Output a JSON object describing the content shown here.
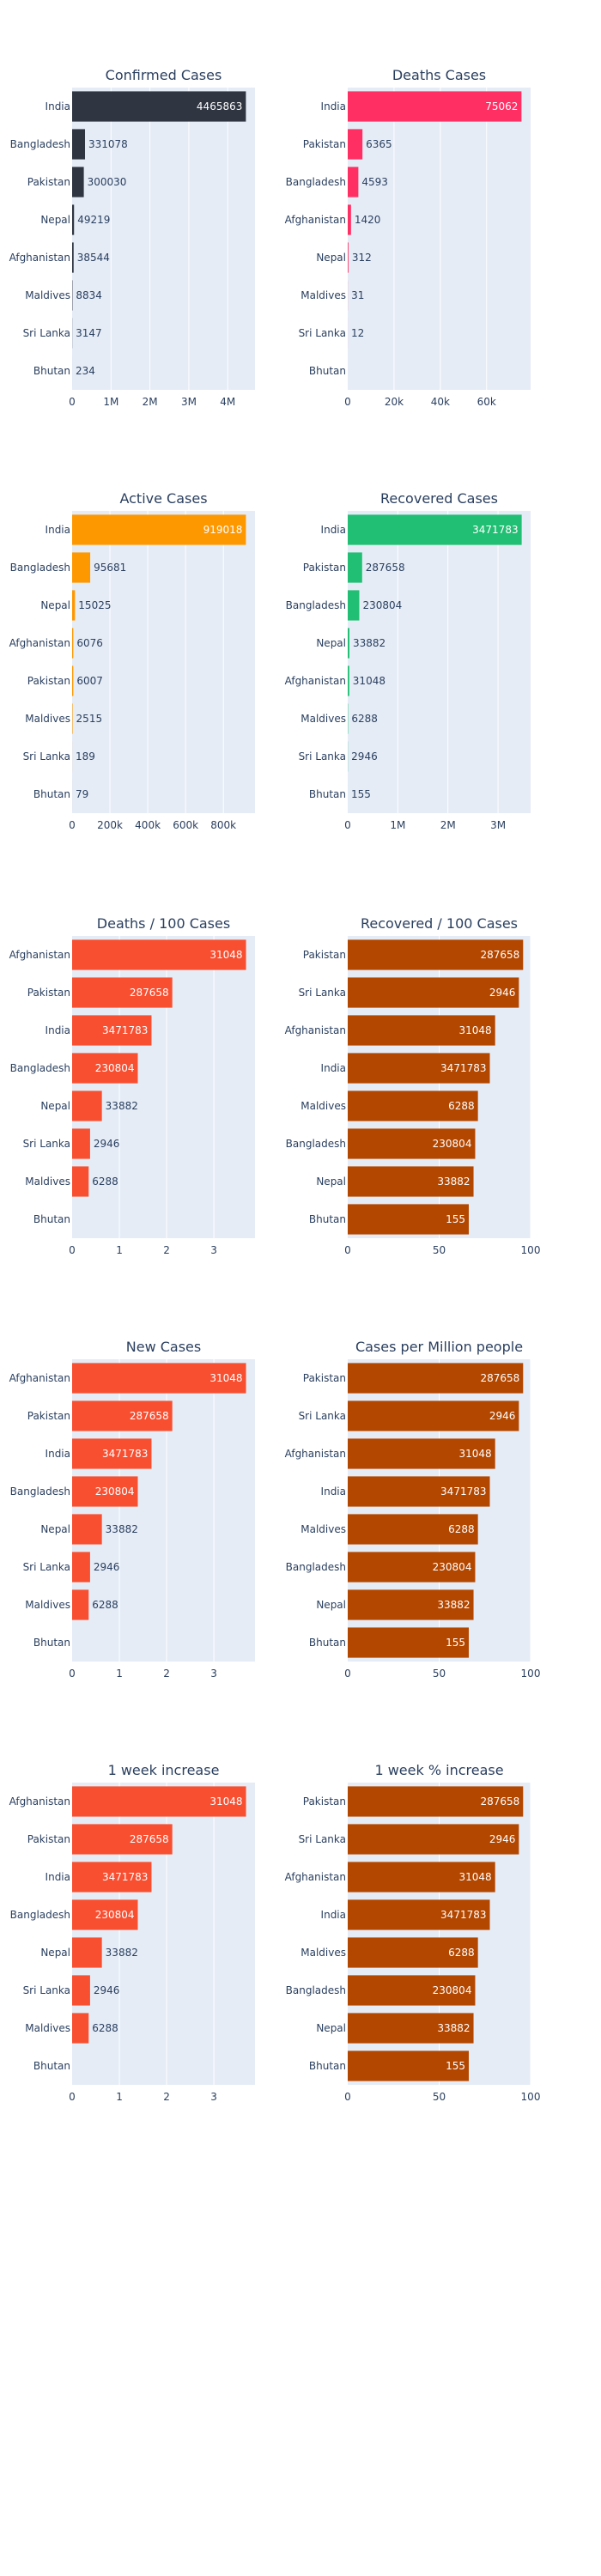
{
  "theme": {
    "plot_bg": "#E5ECF6",
    "grid": "#ffffff",
    "text": "#2a3f5f",
    "label_inside": "#ffffff"
  },
  "chart_data": [
    {
      "type": "bar",
      "orientation": "horizontal",
      "title": "Confirmed Cases",
      "color": "#2F3541",
      "categories": [
        "India",
        "Bangladesh",
        "Pakistan",
        "Nepal",
        "Afghanistan",
        "Maldives",
        "Sri Lanka",
        "Bhutan"
      ],
      "values": [
        4465863,
        331078,
        300030,
        49219,
        38544,
        8834,
        3147,
        234
      ],
      "labels": [
        "4465863",
        "331078",
        "300030",
        "49219",
        "38544",
        "8834",
        "3147",
        "234"
      ],
      "xlim": [
        0,
        4700000
      ],
      "xticks": [
        0,
        1000000,
        2000000,
        3000000,
        4000000
      ],
      "xticklabels": [
        "0",
        "1M",
        "2M",
        "3M",
        "4M"
      ]
    },
    {
      "type": "bar",
      "orientation": "horizontal",
      "title": "Deaths Cases",
      "color": "#FF2E63",
      "categories": [
        "India",
        "Pakistan",
        "Bangladesh",
        "Afghanistan",
        "Nepal",
        "Maldives",
        "Sri Lanka",
        "Bhutan"
      ],
      "values": [
        75062,
        6365,
        4593,
        1420,
        312,
        31,
        12,
        0
      ],
      "labels": [
        "75062",
        "6365",
        "4593",
        "1420",
        "312",
        "31",
        "12",
        ""
      ],
      "xlim": [
        0,
        79000
      ],
      "xticks": [
        0,
        20000,
        40000,
        60000
      ],
      "xticklabels": [
        "0",
        "20k",
        "40k",
        "60k"
      ]
    },
    {
      "type": "bar",
      "orientation": "horizontal",
      "title": "Active Cases",
      "color": "#FE9801",
      "categories": [
        "India",
        "Bangladesh",
        "Nepal",
        "Afghanistan",
        "Pakistan",
        "Maldives",
        "Sri Lanka",
        "Bhutan"
      ],
      "values": [
        919018,
        95681,
        15025,
        6076,
        6007,
        2515,
        189,
        79
      ],
      "labels": [
        "919018",
        "95681",
        "15025",
        "6076",
        "6007",
        "2515",
        "189",
        "79"
      ],
      "xlim": [
        0,
        967000
      ],
      "xticks": [
        0,
        200000,
        400000,
        600000,
        800000
      ],
      "xticklabels": [
        "0",
        "200k",
        "400k",
        "600k",
        "800k"
      ]
    },
    {
      "type": "bar",
      "orientation": "horizontal",
      "title": "Recovered Cases",
      "color": "#21BF73",
      "categories": [
        "India",
        "Pakistan",
        "Bangladesh",
        "Nepal",
        "Afghanistan",
        "Maldives",
        "Sri Lanka",
        "Bhutan"
      ],
      "values": [
        3471783,
        287658,
        230804,
        33882,
        31048,
        6288,
        2946,
        155
      ],
      "labels": [
        "3471783",
        "287658",
        "230804",
        "33882",
        "31048",
        "6288",
        "2946",
        "155"
      ],
      "xlim": [
        0,
        3650000
      ],
      "xticks": [
        0,
        1000000,
        2000000,
        3000000
      ],
      "xticklabels": [
        "0",
        "1M",
        "2M",
        "3M"
      ]
    },
    {
      "type": "bar",
      "orientation": "horizontal",
      "title": "Deaths / 100 Cases",
      "color": "#F84F31",
      "categories": [
        "Afghanistan",
        "Pakistan",
        "India",
        "Bangladesh",
        "Nepal",
        "Sri Lanka",
        "Maldives",
        "Bhutan"
      ],
      "values": [
        3.68,
        2.12,
        1.68,
        1.39,
        0.63,
        0.38,
        0.35,
        0
      ],
      "labels": [
        "31048",
        "287658",
        "3471783",
        "230804",
        "33882",
        "2946",
        "6288",
        ""
      ],
      "xlim": [
        0,
        3.87
      ],
      "xticks": [
        0,
        1,
        2,
        3
      ],
      "xticklabels": [
        "0",
        "1",
        "2",
        "3"
      ]
    },
    {
      "type": "bar",
      "orientation": "horizontal",
      "title": "Recovered / 100 Cases",
      "color": "#B34700",
      "categories": [
        "Pakistan",
        "Sri Lanka",
        "Afghanistan",
        "India",
        "Maldives",
        "Bangladesh",
        "Nepal",
        "Bhutan"
      ],
      "values": [
        95.9,
        93.6,
        80.6,
        77.7,
        71.2,
        69.7,
        68.8,
        66.2
      ],
      "labels": [
        "287658",
        "2946",
        "31048",
        "3471783",
        "6288",
        "230804",
        "33882",
        "155"
      ],
      "xlim": [
        0,
        100
      ],
      "xticks": [
        0,
        50,
        100
      ],
      "xticklabels": [
        "0",
        "50",
        "100"
      ]
    },
    {
      "type": "bar",
      "orientation": "horizontal",
      "title": "New Cases",
      "color": "#F84F31",
      "categories": [
        "Afghanistan",
        "Pakistan",
        "India",
        "Bangladesh",
        "Nepal",
        "Sri Lanka",
        "Maldives",
        "Bhutan"
      ],
      "values": [
        3.68,
        2.12,
        1.68,
        1.39,
        0.63,
        0.38,
        0.35,
        0
      ],
      "labels": [
        "31048",
        "287658",
        "3471783",
        "230804",
        "33882",
        "2946",
        "6288",
        ""
      ],
      "xlim": [
        0,
        3.87
      ],
      "xticks": [
        0,
        1,
        2,
        3
      ],
      "xticklabels": [
        "0",
        "1",
        "2",
        "3"
      ]
    },
    {
      "type": "bar",
      "orientation": "horizontal",
      "title": "Cases per Million people",
      "color": "#B34700",
      "categories": [
        "Pakistan",
        "Sri Lanka",
        "Afghanistan",
        "India",
        "Maldives",
        "Bangladesh",
        "Nepal",
        "Bhutan"
      ],
      "values": [
        95.9,
        93.6,
        80.6,
        77.7,
        71.2,
        69.7,
        68.8,
        66.2
      ],
      "labels": [
        "287658",
        "2946",
        "31048",
        "3471783",
        "6288",
        "230804",
        "33882",
        "155"
      ],
      "xlim": [
        0,
        100
      ],
      "xticks": [
        0,
        50,
        100
      ],
      "xticklabels": [
        "0",
        "50",
        "100"
      ]
    },
    {
      "type": "bar",
      "orientation": "horizontal",
      "title": "1 week increase",
      "color": "#F84F31",
      "categories": [
        "Afghanistan",
        "Pakistan",
        "India",
        "Bangladesh",
        "Nepal",
        "Sri Lanka",
        "Maldives",
        "Bhutan"
      ],
      "values": [
        3.68,
        2.12,
        1.68,
        1.39,
        0.63,
        0.38,
        0.35,
        0
      ],
      "labels": [
        "31048",
        "287658",
        "3471783",
        "230804",
        "33882",
        "2946",
        "6288",
        ""
      ],
      "xlim": [
        0,
        3.87
      ],
      "xticks": [
        0,
        1,
        2,
        3
      ],
      "xticklabels": [
        "0",
        "1",
        "2",
        "3"
      ]
    },
    {
      "type": "bar",
      "orientation": "horizontal",
      "title": "1 week % increase",
      "color": "#B34700",
      "categories": [
        "Pakistan",
        "Sri Lanka",
        "Afghanistan",
        "India",
        "Maldives",
        "Bangladesh",
        "Nepal",
        "Bhutan"
      ],
      "values": [
        95.9,
        93.6,
        80.6,
        77.7,
        71.2,
        69.7,
        68.8,
        66.2
      ],
      "labels": [
        "287658",
        "2946",
        "31048",
        "3471783",
        "6288",
        "230804",
        "33882",
        "155"
      ],
      "xlim": [
        0,
        100
      ],
      "xticks": [
        0,
        50,
        100
      ],
      "xticklabels": [
        "0",
        "50",
        "100"
      ]
    }
  ]
}
